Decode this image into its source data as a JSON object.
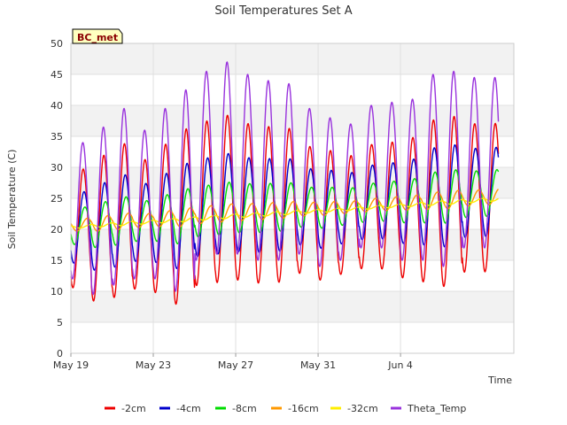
{
  "chart_data": {
    "type": "line",
    "title": "Soil Temperatures Set A",
    "xlabel": "Time",
    "ylabel": "Soil Temperature (C)",
    "badge": "BC_met",
    "ylim": [
      0,
      50
    ],
    "yticks": [
      0,
      5,
      10,
      15,
      20,
      25,
      30,
      35,
      40,
      45,
      50
    ],
    "xlim_days": [
      0,
      21.5
    ],
    "xticks": [
      {
        "label": "May 19",
        "day": 0
      },
      {
        "label": "May 23",
        "day": 4
      },
      {
        "label": "May 27",
        "day": 8
      },
      {
        "label": "May 31",
        "day": 12
      },
      {
        "label": "Jun 4",
        "day": 16
      }
    ],
    "grid": true,
    "legend_position": "bottom",
    "days": [
      {
        "min": 12,
        "max": 34
      },
      {
        "min": 9.5,
        "max": 36.5
      },
      {
        "min": 11,
        "max": 39.5
      },
      {
        "min": 12,
        "max": 36
      },
      {
        "min": 12,
        "max": 39.5
      },
      {
        "min": 10,
        "max": 42.5
      },
      {
        "min": 15,
        "max": 45.5
      },
      {
        "min": 16,
        "max": 47
      },
      {
        "min": 16,
        "max": 45
      },
      {
        "min": 15,
        "max": 44
      },
      {
        "min": 15,
        "max": 43.5
      },
      {
        "min": 16,
        "max": 39.5
      },
      {
        "min": 14,
        "max": 38
      },
      {
        "min": 15,
        "max": 37
      },
      {
        "min": 17,
        "max": 40
      },
      {
        "min": 17,
        "max": 40.5
      },
      {
        "min": 15,
        "max": 41
      },
      {
        "min": 15,
        "max": 45
      },
      {
        "min": 14,
        "max": 45.5
      },
      {
        "min": 17,
        "max": 44.5
      }
    ],
    "series": [
      {
        "name": "-2cm",
        "color": "#ee0000",
        "base_start": 17,
        "base_end": 19,
        "amp_factor": 0.87,
        "phase": 0.0,
        "start_day": 0.0,
        "end_day": 20.75
      },
      {
        "name": "-4cm",
        "color": "#0000cc",
        "base_start": 19,
        "base_end": 24,
        "amp_factor": 0.52,
        "phase": 0.04,
        "start_day": 0.0,
        "end_day": 20.75
      },
      {
        "name": "-8cm",
        "color": "#00dd00",
        "base_start": 20,
        "base_end": 25,
        "amp_factor": 0.27,
        "phase": 0.08,
        "start_day": 0.0,
        "end_day": 20.75
      },
      {
        "name": "-16cm",
        "color": "#ff9900",
        "base_start": 20.5,
        "base_end": 25,
        "amp_factor": 0.09,
        "phase": 0.2,
        "start_day": 0.0,
        "end_day": 20.75
      },
      {
        "name": "-32cm",
        "color": "#ffee00",
        "base_start": 20.3,
        "base_end": 24.8,
        "amp_factor": 0.02,
        "phase": 0.35,
        "start_day": 0.0,
        "end_day": 20.75
      },
      {
        "name": "Theta_Temp",
        "color": "#9933dd",
        "base_start": 16,
        "base_end": 16,
        "amp_factor": 1.0,
        "phase": -0.02,
        "start_day": 0.0,
        "end_day": 20.75
      }
    ]
  }
}
